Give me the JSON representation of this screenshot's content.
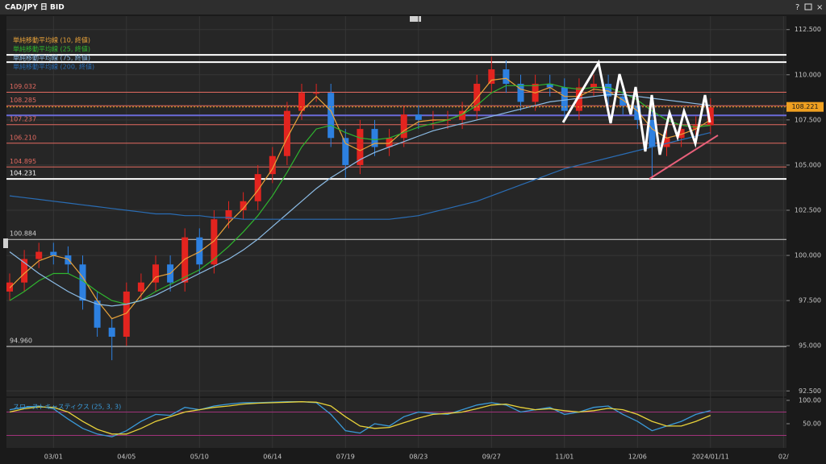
{
  "header": {
    "title": "CAD/JPY 日 BID"
  },
  "chart_data": [
    {
      "type": "candlestick",
      "categories": [
        null,
        null,
        null,
        "03/01",
        null,
        null,
        null,
        null,
        "04/05",
        null,
        null,
        null,
        null,
        "05/10",
        null,
        null,
        null,
        null,
        "06/14",
        null,
        null,
        null,
        null,
        "07/19",
        null,
        null,
        null,
        null,
        "08/23",
        null,
        null,
        null,
        null,
        "09/27",
        null,
        null,
        null,
        null,
        "11/01",
        null,
        null,
        null,
        null,
        "12/06",
        null,
        null,
        null,
        null,
        "2024/01/11",
        null,
        null,
        null,
        null,
        "02/"
      ],
      "open": [
        98.0,
        98.5,
        99.8,
        100.2,
        100.0,
        99.5,
        97.5,
        96.0,
        95.5,
        98.0,
        98.5,
        99.5,
        98.5,
        101.0,
        99.5,
        102.0,
        102.5,
        103.0,
        104.5,
        105.5,
        108.0,
        109.0,
        109.0,
        106.5,
        105.0,
        107.0,
        106.0,
        106.5,
        107.8,
        107.5,
        107.5,
        107.5,
        108.0,
        109.5,
        110.3,
        109.5,
        108.5,
        109.5,
        109.3,
        108.0,
        109.3,
        109.5,
        108.8,
        108.3,
        107.5,
        106.0,
        106.5,
        107.0,
        107.2,
        null,
        null,
        null,
        null,
        null
      ],
      "high": [
        99.0,
        100.3,
        100.7,
        100.7,
        100.5,
        100.0,
        98.0,
        96.5,
        98.5,
        99.0,
        100.0,
        100.0,
        101.5,
        101.5,
        102.5,
        103.0,
        103.5,
        105.0,
        106.0,
        108.5,
        109.5,
        109.5,
        109.5,
        107.0,
        107.5,
        107.5,
        107.0,
        108.3,
        108.3,
        108.0,
        108.0,
        108.5,
        110.0,
        111.0,
        110.8,
        110.0,
        110.0,
        110.0,
        109.8,
        109.8,
        110.0,
        110.0,
        109.3,
        108.8,
        108.0,
        107.0,
        107.5,
        107.7,
        108.7,
        null,
        null,
        null,
        null,
        null
      ],
      "low": [
        97.5,
        98.0,
        99.3,
        99.5,
        99.0,
        97.0,
        95.5,
        94.2,
        95.0,
        97.5,
        98.0,
        98.0,
        98.0,
        99.0,
        99.0,
        101.5,
        102.0,
        102.5,
        104.0,
        105.0,
        107.5,
        108.5,
        106.0,
        104.3,
        104.5,
        105.5,
        105.5,
        106.0,
        107.0,
        107.0,
        107.0,
        107.0,
        107.5,
        109.0,
        109.0,
        108.0,
        108.0,
        108.8,
        107.5,
        107.5,
        108.8,
        108.3,
        107.8,
        107.0,
        104.3,
        105.5,
        106.0,
        106.5,
        106.7,
        null,
        null,
        null,
        null,
        null
      ],
      "close": [
        98.5,
        99.8,
        100.2,
        100.0,
        99.5,
        97.5,
        96.0,
        95.5,
        98.0,
        98.5,
        99.5,
        98.5,
        101.0,
        99.5,
        102.0,
        102.5,
        103.0,
        104.5,
        105.5,
        108.0,
        109.0,
        109.0,
        106.5,
        105.0,
        107.0,
        106.0,
        106.5,
        107.8,
        107.5,
        107.5,
        107.5,
        108.0,
        109.5,
        110.3,
        109.5,
        108.5,
        109.5,
        109.3,
        108.0,
        109.3,
        109.5,
        108.8,
        108.3,
        107.5,
        106.0,
        106.5,
        107.0,
        107.2,
        108.2,
        null,
        null,
        null,
        null,
        null
      ],
      "up_color": "#e3241f",
      "down_color": "#2d80e0",
      "series": [
        {
          "name": "単純移動平均線 (10, 終値)",
          "color": "#e8a23a",
          "values": [
            98.2,
            99.0,
            99.7,
            100.0,
            99.8,
            98.8,
            97.5,
            96.5,
            96.8,
            97.8,
            98.8,
            99.0,
            99.8,
            100.2,
            100.8,
            101.8,
            102.6,
            103.6,
            104.8,
            106.5,
            108.0,
            108.8,
            108.0,
            106.2,
            105.8,
            106.2,
            106.2,
            106.9,
            107.4,
            107.5,
            107.5,
            107.8,
            108.7,
            109.7,
            109.8,
            109.2,
            109.0,
            109.3,
            108.8,
            108.8,
            109.2,
            109.1,
            108.6,
            108.0,
            107.0,
            106.5,
            106.7,
            107.0,
            107.5,
            null,
            null,
            null,
            null,
            null
          ]
        },
        {
          "name": "単純移動平均線 (25, 終値)",
          "color": "#2fb52f",
          "values": [
            97.5,
            98.0,
            98.6,
            99.0,
            99.0,
            98.6,
            98.0,
            97.5,
            97.3,
            97.5,
            98.0,
            98.4,
            98.8,
            99.2,
            99.8,
            100.5,
            101.3,
            102.2,
            103.3,
            104.6,
            106.0,
            107.0,
            107.2,
            106.8,
            106.5,
            106.4,
            106.5,
            106.8,
            107.1,
            107.3,
            107.5,
            107.8,
            108.3,
            109.0,
            109.4,
            109.4,
            109.4,
            109.5,
            109.3,
            109.2,
            109.3,
            109.3,
            109.0,
            108.6,
            108.0,
            107.5,
            107.2,
            107.1,
            107.2,
            null,
            null,
            null,
            null,
            null
          ]
        },
        {
          "name": "単純移動平均線 (75, 終値)",
          "color": "#8cbce6",
          "values": [
            100.2,
            99.6,
            99.0,
            98.5,
            98.0,
            97.6,
            97.3,
            97.2,
            97.3,
            97.5,
            97.8,
            98.2,
            98.6,
            99.0,
            99.4,
            99.8,
            100.3,
            100.9,
            101.6,
            102.3,
            103.0,
            103.7,
            104.3,
            104.8,
            105.3,
            105.7,
            106.0,
            106.3,
            106.6,
            106.9,
            107.1,
            107.3,
            107.5,
            107.7,
            107.9,
            108.1,
            108.3,
            108.5,
            108.6,
            108.7,
            108.8,
            108.9,
            108.9,
            108.8,
            108.7,
            108.6,
            108.5,
            108.4,
            108.3,
            null,
            null,
            null,
            null,
            null
          ]
        },
        {
          "name": "単純移動平均線 (200, 終値)",
          "color": "#2a6db5",
          "values": [
            103.3,
            103.2,
            103.1,
            103.0,
            102.9,
            102.8,
            102.7,
            102.6,
            102.5,
            102.4,
            102.3,
            102.3,
            102.2,
            102.2,
            102.1,
            102.1,
            102.0,
            102.0,
            102.0,
            102.0,
            102.0,
            102.0,
            102.0,
            102.0,
            102.0,
            102.0,
            102.0,
            102.1,
            102.2,
            102.4,
            102.6,
            102.8,
            103.0,
            103.3,
            103.6,
            103.9,
            104.2,
            104.5,
            104.8,
            105.0,
            105.2,
            105.4,
            105.6,
            105.8,
            106.0,
            106.2,
            106.4,
            106.6,
            106.8,
            null,
            null,
            null,
            null,
            null
          ]
        }
      ],
      "ylim": [
        92.2,
        112.8
      ],
      "yticks": [
        {
          "value": 112.5,
          "label": "112.500"
        },
        {
          "value": 110,
          "label": "110.000"
        },
        {
          "value": 107.5,
          "label": "107.500"
        },
        {
          "value": 105,
          "label": "105.000"
        },
        {
          "value": 102.5,
          "label": "102.500"
        },
        {
          "value": 100,
          "label": "100.000"
        },
        {
          "value": 97.5,
          "label": "97.500"
        },
        {
          "value": 95,
          "label": "95.000"
        },
        {
          "value": 92.5,
          "label": "92.500"
        }
      ],
      "levels": [
        {
          "value": 109.032,
          "color": "#e36a60"
        },
        {
          "value": 108.285,
          "color": "#e36a60"
        },
        {
          "value": 107.237,
          "color": "#e36a60"
        },
        {
          "value": 106.21,
          "label": "106.210",
          "color": "#e36a60"
        },
        {
          "value": 104.895,
          "color": "#e36a60"
        },
        {
          "value": 104.231,
          "color": "#ffffff"
        },
        {
          "value": 100.884,
          "color": "#d0d0d0"
        },
        {
          "value": 94.96,
          "label": "94.960",
          "color": "#d0d0d0"
        }
      ],
      "bands": [
        {
          "value": 111.1,
          "color": "#ffffff"
        },
        {
          "value": 110.7,
          "color": "#ffffff"
        },
        {
          "value": 107.75,
          "color": "#6b6bd8"
        }
      ],
      "last_price": 108.221,
      "last_price_color": "#f0a020"
    },
    {
      "type": "line",
      "title": "スローストキャスティクス (25, 3, 3)",
      "series": [
        {
          "color": "#3a9ad9",
          "values": [
            80,
            85,
            88,
            82,
            60,
            40,
            28,
            22,
            35,
            55,
            70,
            68,
            85,
            80,
            88,
            92,
            95,
            95,
            96,
            97,
            97,
            95,
            70,
            35,
            30,
            50,
            45,
            65,
            75,
            72,
            70,
            80,
            90,
            95,
            90,
            75,
            80,
            85,
            70,
            75,
            85,
            88,
            70,
            55,
            35,
            45,
            55,
            70,
            78,
            null,
            null,
            null,
            null,
            null
          ]
        },
        {
          "color": "#e8d23a",
          "values": [
            75,
            82,
            86,
            85,
            75,
            55,
            38,
            28,
            28,
            40,
            55,
            65,
            75,
            80,
            85,
            88,
            92,
            94,
            95,
            96,
            97,
            96,
            88,
            65,
            45,
            40,
            42,
            52,
            62,
            70,
            72,
            75,
            82,
            90,
            92,
            85,
            80,
            82,
            78,
            75,
            78,
            83,
            80,
            70,
            55,
            45,
            45,
            55,
            68,
            null,
            null,
            null,
            null,
            null
          ]
        }
      ],
      "ylim": [
        0,
        100
      ],
      "yticks": [
        {
          "value": 100,
          "label": "100.00"
        },
        {
          "value": 50,
          "label": "50.00"
        }
      ],
      "bands": [
        75,
        25
      ],
      "band_color": "#a0327a"
    }
  ]
}
